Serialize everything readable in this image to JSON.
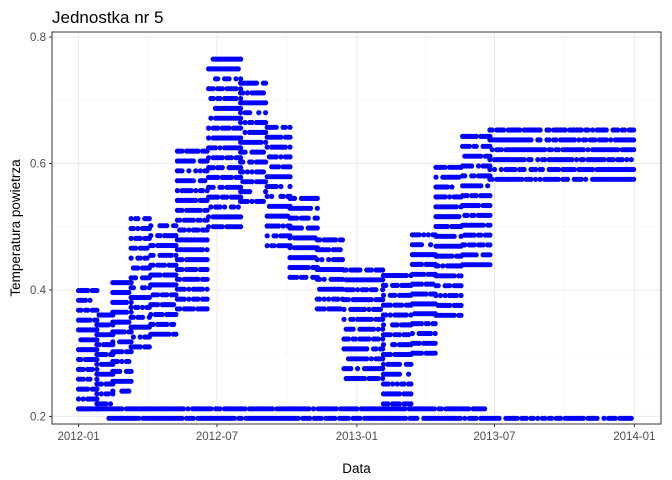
{
  "chart_data": {
    "type": "scatter",
    "title": "Jednostka nr 5",
    "xlabel": "Data",
    "ylabel": "Temperatura powietrza",
    "x_axis_type": "date",
    "xlim": [
      "2011-11-27",
      "2014-02-05"
    ],
    "ylim": [
      0.188,
      0.808
    ],
    "x_ticks": [
      "2012-01-01",
      "2012-07-01",
      "2013-01-01",
      "2013-07-01",
      "2014-01-01"
    ],
    "x_tick_labels": [
      "2012-01",
      "2012-07",
      "2013-01",
      "2013-07",
      "2014-01"
    ],
    "y_ticks": [
      0.2,
      0.4,
      0.6,
      0.8
    ],
    "y_tick_labels": [
      "0.2",
      "0.4",
      "0.6",
      "0.8"
    ],
    "grid": true,
    "panel_border": true,
    "legend": "none",
    "point_color": "#0000ff",
    "level_step": 0.0156,
    "bands": [
      {
        "from": "2012-01-01",
        "to": "2012-01-25",
        "min": 0.212,
        "max": 0.41
      },
      {
        "from": "2012-01-25",
        "to": "2012-02-15",
        "min": 0.22,
        "max": 0.37
      },
      {
        "from": "2012-02-15",
        "to": "2012-03-10",
        "min": 0.24,
        "max": 0.42
      },
      {
        "from": "2012-03-10",
        "to": "2012-04-05",
        "min": 0.31,
        "max": 0.515
      },
      {
        "from": "2012-04-05",
        "to": "2012-05-10",
        "min": 0.33,
        "max": 0.515
      },
      {
        "from": "2012-05-10",
        "to": "2012-06-20",
        "min": 0.37,
        "max": 0.62
      },
      {
        "from": "2012-06-20",
        "to": "2012-08-01",
        "min": 0.5,
        "max": 0.77
      },
      {
        "from": "2012-08-01",
        "to": "2012-09-05",
        "min": 0.54,
        "max": 0.74
      },
      {
        "from": "2012-09-05",
        "to": "2012-10-05",
        "min": 0.47,
        "max": 0.665
      },
      {
        "from": "2012-10-05",
        "to": "2012-11-10",
        "min": 0.42,
        "max": 0.56
      },
      {
        "from": "2012-11-10",
        "to": "2012-12-15",
        "min": 0.37,
        "max": 0.49
      },
      {
        "from": "2012-12-15",
        "to": "2013-02-05",
        "min": 0.26,
        "max": 0.44
      },
      {
        "from": "2013-02-05",
        "to": "2013-03-15",
        "min": 0.22,
        "max": 0.43
      },
      {
        "from": "2013-03-15",
        "to": "2013-04-15",
        "min": 0.3,
        "max": 0.5
      },
      {
        "from": "2013-04-15",
        "to": "2013-05-20",
        "min": 0.36,
        "max": 0.6
      },
      {
        "from": "2013-05-20",
        "to": "2013-06-25",
        "min": 0.44,
        "max": 0.65
      },
      {
        "from": "2013-06-25",
        "to": "2014-01-01",
        "min": 0.575,
        "max": 0.665
      }
    ],
    "baseline_series": [
      {
        "from": "2012-01-01",
        "to": "2013-06-20",
        "y": 0.212
      },
      {
        "from": "2012-02-10",
        "to": "2014-01-01",
        "y": 0.197
      }
    ]
  }
}
